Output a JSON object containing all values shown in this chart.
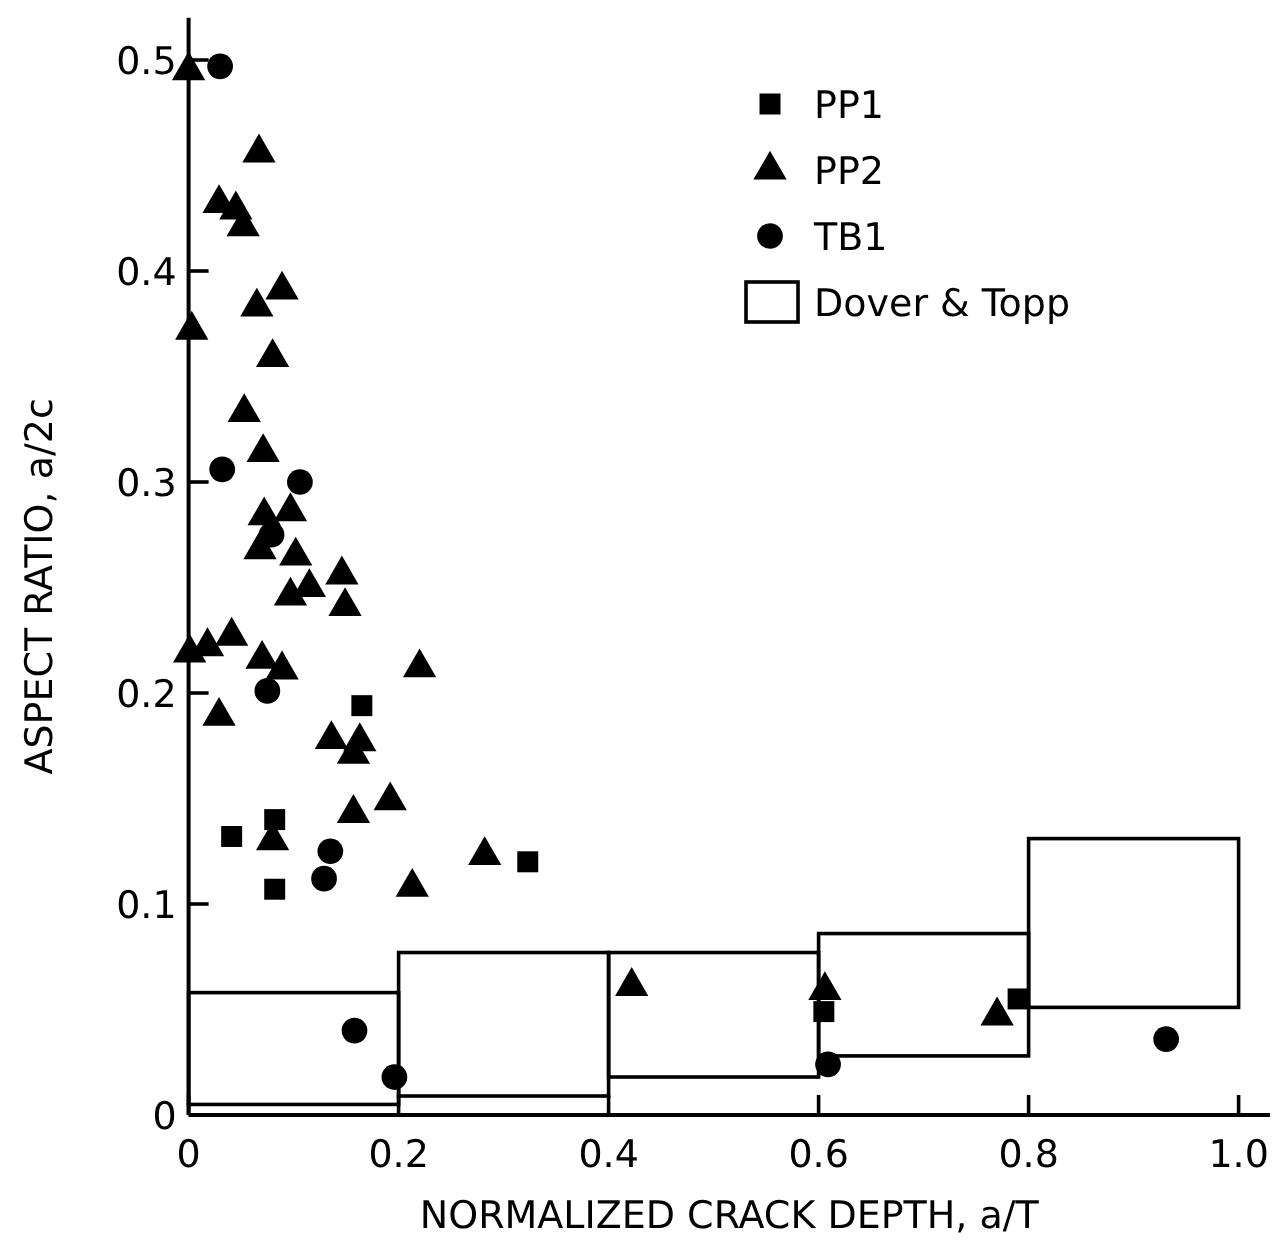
{
  "chart_data": {
    "type": "scatter",
    "xlabel": "NORMALIZED CRACK DEPTH, a/T",
    "ylabel": "ASPECT RATIO, a/2c",
    "xlim": [
      0,
      1.03
    ],
    "ylim": [
      0,
      0.52
    ],
    "xticks": [
      0,
      0.2,
      0.4,
      0.6,
      0.8,
      {
        "value": 1,
        "label": "1.0"
      }
    ],
    "yticks": [
      0,
      0.1,
      0.2,
      0.3,
      0.4,
      0.5
    ],
    "legend": "top right",
    "series": [
      {
        "name": "PP1",
        "marker": "square",
        "color": "#000000",
        "x": [
          0.041,
          0.082,
          0.082,
          0.165,
          0.323,
          0.605,
          0.79
        ],
        "values": [
          0.132,
          0.14,
          0.107,
          0.194,
          0.12,
          0.049,
          0.055
        ]
      },
      {
        "name": "PP2",
        "marker": "triangle",
        "color": "#000000",
        "x": [
          0,
          0.067,
          0.029,
          0.045,
          0.052,
          0.089,
          0.065,
          0.003,
          0.08,
          0.053,
          0.071,
          0.072,
          0.097,
          0.068,
          0.102,
          0.146,
          0.097,
          0.115,
          0.149,
          0.001,
          0.018,
          0.041,
          0.07,
          0.089,
          0.22,
          0.029,
          0.136,
          0.163,
          0.157,
          0.192,
          0.157,
          0.08,
          0.282,
          0.213,
          0.422,
          0.606,
          0.77
        ],
        "values": [
          0.495,
          0.456,
          0.432,
          0.429,
          0.421,
          0.391,
          0.383,
          0.372,
          0.359,
          0.333,
          0.314,
          0.284,
          0.286,
          0.268,
          0.265,
          0.256,
          0.246,
          0.25,
          0.241,
          0.219,
          0.222,
          0.227,
          0.216,
          0.211,
          0.212,
          0.189,
          0.178,
          0.177,
          0.171,
          0.149,
          0.143,
          0.13,
          0.123,
          0.108,
          0.061,
          0.059,
          0.047
        ]
      },
      {
        "name": "TB1",
        "marker": "circle",
        "color": "#000000",
        "x": [
          0.03,
          0.032,
          0.106,
          0.079,
          0.075,
          0.135,
          0.129,
          0.158,
          0.196,
          0.609,
          0.931
        ],
        "values": [
          0.497,
          0.306,
          0.3,
          0.275,
          0.201,
          0.125,
          0.112,
          0.04,
          0.018,
          0.024,
          0.036
        ]
      },
      {
        "name": "Dover & Topp",
        "type": "bar",
        "color": "#000000",
        "x": [
          0.1,
          0.3,
          0.5,
          0.7,
          0.9
        ],
        "base": [
          0.005,
          0.009,
          0.018,
          0.028,
          0.051
        ],
        "values": [
          0.053,
          0.068,
          0.059,
          0.058,
          0.08
        ]
      }
    ]
  }
}
